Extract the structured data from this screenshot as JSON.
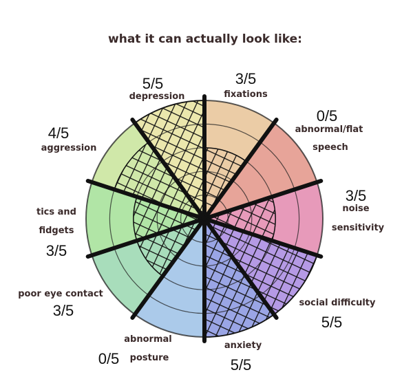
{
  "chart_data": {
    "type": "radial",
    "title": "what it can actually look like:",
    "categories": [
      [
        "fixations"
      ],
      [
        "abnormal/flat",
        "speech"
      ],
      [
        "noise",
        "sensitivity"
      ],
      [
        "social difficulty"
      ],
      [
        "anxiety"
      ],
      [
        "abnormal",
        "posture"
      ],
      [
        "poor eye contact"
      ],
      [
        "tics and",
        "fidgets"
      ],
      [
        "aggression"
      ],
      [
        "depression"
      ]
    ],
    "values": [
      3,
      0,
      3,
      5,
      5,
      0,
      3,
      3,
      4,
      5
    ],
    "value_labels": [
      "3/5",
      "0/5",
      "3/5",
      "5/5",
      "5/5",
      "0/5",
      "3/5",
      "3/5",
      "4/5",
      "5/5"
    ],
    "colors": [
      "#e9c79c",
      "#e49a8e",
      "#e48fb2",
      "#ad8fe2",
      "#8f9be2",
      "#a2c4e8",
      "#9fd9b4",
      "#a9e29c",
      "#cbe6a0",
      "#e9e4a4"
    ],
    "rlim": [
      0,
      5
    ]
  }
}
